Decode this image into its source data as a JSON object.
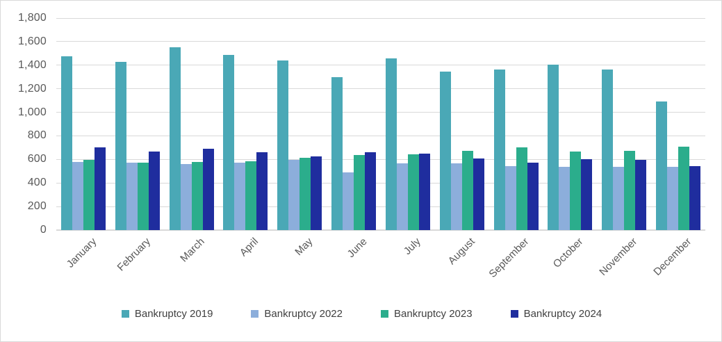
{
  "chart_data": {
    "type": "bar",
    "title": "",
    "xlabel": "",
    "ylabel": "",
    "categories": [
      "January",
      "February",
      "March",
      "April",
      "May",
      "June",
      "July",
      "August",
      "September",
      "October",
      "November",
      "December"
    ],
    "series": [
      {
        "name": "Bankruptcy 2019",
        "color": "#4AA8B6",
        "values": [
          1475,
          1430,
          1555,
          1490,
          1440,
          1300,
          1460,
          1345,
          1365,
          1405,
          1365,
          1090
        ]
      },
      {
        "name": "Bankruptcy 2022",
        "color": "#8CAEDB",
        "values": [
          580,
          570,
          560,
          575,
          595,
          490,
          565,
          565,
          545,
          535,
          540,
          540
        ]
      },
      {
        "name": "Bankruptcy 2023",
        "color": "#2BAD8C",
        "values": [
          595,
          575,
          580,
          585,
          615,
          640,
          645,
          670,
          700,
          665,
          670,
          710
        ]
      },
      {
        "name": "Bankruptcy 2024",
        "color": "#1F2D9E",
        "values": [
          700,
          665,
          690,
          660,
          625,
          660,
          650,
          610,
          570,
          600,
          595,
          545
        ]
      }
    ],
    "ylim": [
      0,
      1800
    ],
    "y_tick_step": 200,
    "y_tick_labels": [
      "0",
      "200",
      "400",
      "600",
      "800",
      "1,000",
      "1,200",
      "1,400",
      "1,600",
      "1,800"
    ],
    "grid": "on",
    "legend_position": "bottom"
  },
  "colors": {
    "background": "#FFFFFF",
    "gridline": "#D9D9D9",
    "axis_line": "#D9D9D9",
    "tick_text": "#595959",
    "legend_text": "#404040",
    "border": "#D9D9D9"
  }
}
